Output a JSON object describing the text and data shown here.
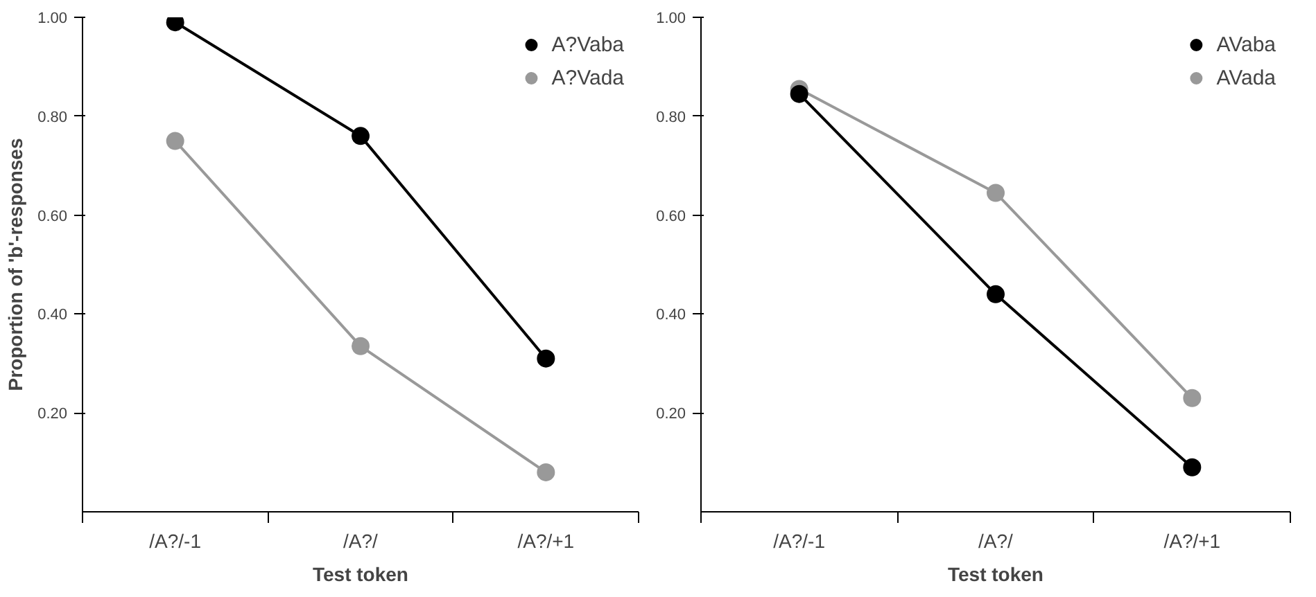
{
  "chart_data": [
    {
      "type": "line",
      "xlabel": "Test token",
      "ylabel": "Proportion of 'b'-responses",
      "categories": [
        "/A?/-1",
        "/A?/",
        "/A?/+1"
      ],
      "series": [
        {
          "name": "A?Vaba",
          "color": "#000000",
          "values": [
            0.99,
            0.76,
            0.31
          ]
        },
        {
          "name": "A?Vada",
          "color": "#999999",
          "values": [
            0.75,
            0.335,
            0.08
          ]
        }
      ],
      "ylim": [
        0,
        1.0
      ],
      "yticks": [
        {
          "value": 0.2,
          "label": "0.20"
        },
        {
          "value": 0.4,
          "label": "0.40"
        },
        {
          "value": 0.6,
          "label": "0.60"
        },
        {
          "value": 0.8,
          "label": "0.80"
        },
        {
          "value": 1.0,
          "label": "1.00"
        }
      ],
      "legend": "top right",
      "marker": "circle",
      "line_style": "solid"
    },
    {
      "type": "line",
      "xlabel": "Test token",
      "categories": [
        "/A?/-1",
        "/A?/",
        "/A?/+1"
      ],
      "series": [
        {
          "name": "AVaba",
          "color": "#000000",
          "values": [
            0.845,
            0.44,
            0.09
          ]
        },
        {
          "name": "AVada",
          "color": "#999999",
          "values": [
            0.855,
            0.645,
            0.23
          ]
        }
      ],
      "ylim": [
        0,
        1.0
      ],
      "yticks": [
        {
          "value": 0.2,
          "label": "0.20"
        },
        {
          "value": 0.4,
          "label": "0.40"
        },
        {
          "value": 0.6,
          "label": "0.60"
        },
        {
          "value": 0.8,
          "label": "0.80"
        },
        {
          "value": 1.0,
          "label": "1.00"
        }
      ],
      "legend": "top right",
      "marker": "circle",
      "line_style": "solid"
    }
  ]
}
